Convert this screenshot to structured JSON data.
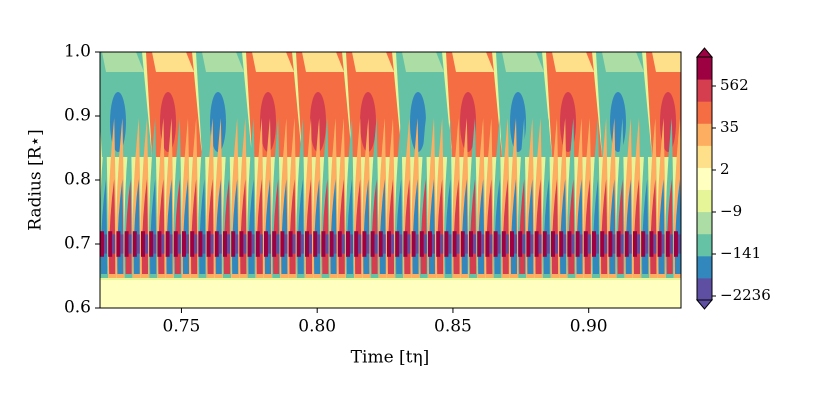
{
  "chart_data": {
    "type": "contour",
    "xlabel": "Time [tη]",
    "ylabel": "Radius [R⋆]",
    "xlim": [
      0.72,
      0.934
    ],
    "ylim": [
      0.6,
      1.0
    ],
    "xticks": [
      0.75,
      {
        "value": 0.8,
        "label": "0.80"
      },
      0.85,
      {
        "value": 0.9,
        "label": "0.90"
      }
    ],
    "yticks": [
      0.6,
      0.7,
      0.8,
      0.9,
      {
        "value": 1,
        "label": "1.0"
      }
    ],
    "colorbar": {
      "colors": [
        "#5e4fa2",
        "#3288bd",
        "#66c2a5",
        "#abdda4",
        "#e6f598",
        "#ffffbf",
        "#fee08b",
        "#fdae61",
        "#f46d43",
        "#d53e4f",
        "#9e0142"
      ],
      "ticks": [
        {
          "value": -2236,
          "label": "−2236"
        },
        {
          "value": -141,
          "label": "−141"
        },
        {
          "value": -9,
          "label": "−9"
        },
        2,
        35,
        562
      ]
    }
  }
}
